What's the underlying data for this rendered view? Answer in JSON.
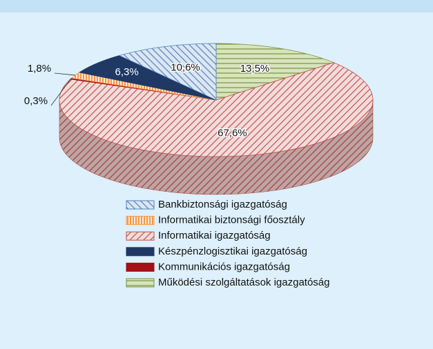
{
  "chart_data": {
    "type": "pie3d",
    "series": [
      {
        "name": "Bankbiztonsági igazgatóság",
        "color": "#4f81bd",
        "background": "#dce6f2",
        "pattern": "down",
        "value": 10.6,
        "value_label": "10,6%"
      },
      {
        "name": "Informatikai biztonsági főosztály",
        "color": "#f79646",
        "background": "#fde9d9",
        "pattern": "vertical",
        "value": 1.8,
        "value_label": "1,8%"
      },
      {
        "name": "Informatikai igazgatóság",
        "color": "#c0504d",
        "background": "#f2dcdb",
        "pattern": "up",
        "value": 67.6,
        "value_label": "67,6%"
      },
      {
        "name": "Készpénzlogisztikai igazgatóság",
        "color": "#1f3864",
        "background": "#1f3864",
        "pattern": "solid",
        "value": 6.3,
        "value_label": "6,3%"
      },
      {
        "name": "Kommunikációs igazgatóság",
        "color": "#a50f15",
        "background": "#a50f15",
        "pattern": "solid",
        "value": 0.3,
        "value_label": "0,3%"
      },
      {
        "name": "Működési szolgáltatások igazgatóság",
        "color": "#77933c",
        "background": "#d7e4bd",
        "pattern": "horizontal",
        "value": 13.5,
        "value_label": "13,5%"
      }
    ],
    "legend": "bottom"
  }
}
